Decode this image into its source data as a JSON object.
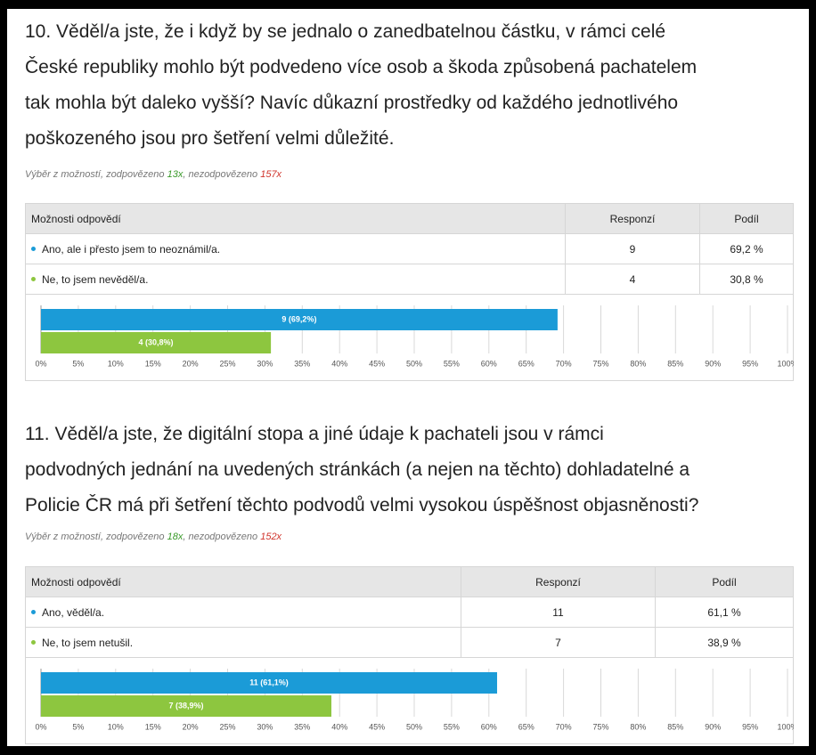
{
  "questions": [
    {
      "title_lines": [
        "10. Věděl/a jste, že i když by se jednalo o zanedbatelnou částku, v rámci celé",
        "České republiky mohlo být podvedeno více osob a škoda způsobená pachatelem",
        "tak mohla být daleko vyšší? Navíc důkazní prostředky od každého jednotlivého",
        "poškozeného jsou pro šetření velmi důležité."
      ],
      "meta": {
        "prefix": "Výběr z možností, zodpovězeno ",
        "answered": "13x",
        "middle": ", nezodpovězeno ",
        "unanswered": "157x"
      },
      "table": {
        "header": [
          "Možnosti odpovědí",
          "Responzí",
          "Podíl"
        ],
        "rows": [
          [
            "Ano, ale i přesto jsem to neoznámil/a.",
            "9",
            "69,2 %"
          ],
          [
            "Ne, to jsem nevěděl/a.",
            "4",
            "30,8 %"
          ]
        ]
      },
      "chart": {
        "type": "bar",
        "values": [
          69.2,
          30.8
        ],
        "value_labels": [
          "9 (69,2%)",
          "4 (30,8%)"
        ],
        "colors": [
          "#1b9bd7",
          "#8dc63f"
        ],
        "xlim": [
          0,
          100
        ],
        "xticks": [
          {
            "value": 0,
            "label": "0%"
          },
          {
            "value": 5,
            "label": "5%"
          },
          {
            "value": 10,
            "label": "10%"
          },
          {
            "value": 15,
            "label": "15%"
          },
          {
            "value": 20,
            "label": "20%"
          },
          {
            "value": 25,
            "label": "25%"
          },
          {
            "value": 30,
            "label": "30%"
          },
          {
            "value": 35,
            "label": "35%"
          },
          {
            "value": 40,
            "label": "40%"
          },
          {
            "value": 45,
            "label": "45%"
          },
          {
            "value": 50,
            "label": "50%"
          },
          {
            "value": 55,
            "label": "55%"
          },
          {
            "value": 60,
            "label": "60%"
          },
          {
            "value": 65,
            "label": "65%"
          },
          {
            "value": 70,
            "label": "70%"
          },
          {
            "value": 75,
            "label": "75%"
          },
          {
            "value": 80,
            "label": "80%"
          },
          {
            "value": 85,
            "label": "85%"
          },
          {
            "value": 90,
            "label": "90%"
          },
          {
            "value": 95,
            "label": "95%"
          },
          {
            "value": 100,
            "label": "100%"
          }
        ]
      }
    },
    {
      "title_lines": [
        "11. Věděl/a jste, že digitální stopa a jiné údaje k pachateli jsou v rámci",
        "podvodných jednání na uvedených stránkách (a nejen na těchto) dohladatelné a",
        "Policie ČR má při šetření těchto podvodů velmi vysokou úspěšnost objasněnosti?"
      ],
      "meta": {
        "prefix": "Výběr z možností, zodpovězeno ",
        "answered": "18x",
        "middle": ", nezodpovězeno ",
        "unanswered": "152x"
      },
      "table": {
        "header": [
          "Možnosti odpovědí",
          "Responzí",
          "Podíl"
        ],
        "rows": [
          [
            "Ano, věděl/a.",
            "11",
            "61,1 %"
          ],
          [
            "Ne, to jsem netušil.",
            "7",
            "38,9 %"
          ]
        ]
      },
      "chart": {
        "type": "bar",
        "values": [
          61.1,
          38.9
        ],
        "value_labels": [
          "11 (61,1%)",
          "7 (38,9%)"
        ],
        "colors": [
          "#1b9bd7",
          "#8dc63f"
        ],
        "xlim": [
          0,
          100
        ],
        "xticks": [
          {
            "value": 0,
            "label": "0%"
          },
          {
            "value": 5,
            "label": "5%"
          },
          {
            "value": 10,
            "label": "10%"
          },
          {
            "value": 15,
            "label": "15%"
          },
          {
            "value": 20,
            "label": "20%"
          },
          {
            "value": 25,
            "label": "25%"
          },
          {
            "value": 30,
            "label": "30%"
          },
          {
            "value": 35,
            "label": "35%"
          },
          {
            "value": 40,
            "label": "40%"
          },
          {
            "value": 45,
            "label": "45%"
          },
          {
            "value": 50,
            "label": "50%"
          },
          {
            "value": 55,
            "label": "55%"
          },
          {
            "value": 60,
            "label": "60%"
          },
          {
            "value": 65,
            "label": "65%"
          },
          {
            "value": 70,
            "label": "70%"
          },
          {
            "value": 75,
            "label": "75%"
          },
          {
            "value": 80,
            "label": "80%"
          },
          {
            "value": 85,
            "label": "85%"
          },
          {
            "value": 90,
            "label": "90%"
          },
          {
            "value": 95,
            "label": "95%"
          },
          {
            "value": 100,
            "label": "100%"
          }
        ]
      }
    }
  ]
}
